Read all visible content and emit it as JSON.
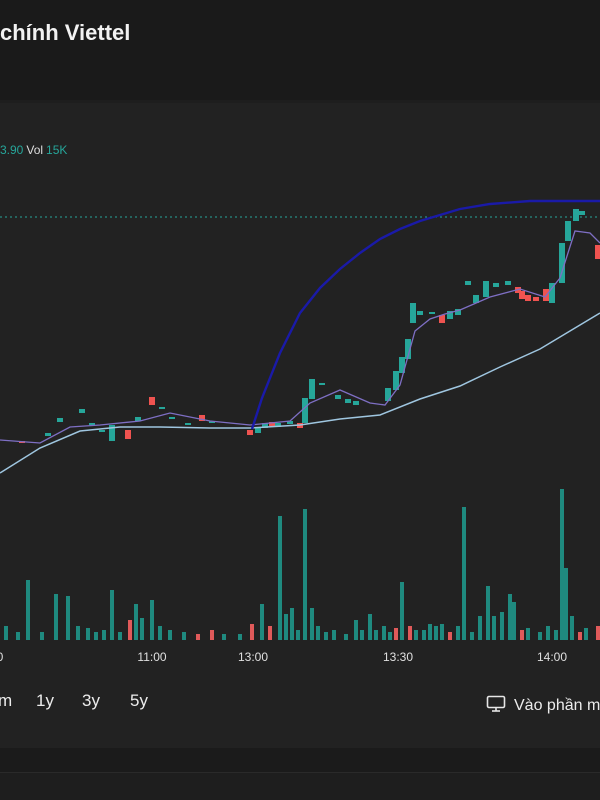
{
  "header": {
    "title": "chính Viettel"
  },
  "legend": {
    "price": "3.90",
    "vol_label": "Vol",
    "vol_value": "15K"
  },
  "ranges": [
    "m",
    "1y",
    "3y",
    "5y"
  ],
  "fullscreen": {
    "label": "Vào phần m"
  },
  "chart_data": {
    "type": "candlestick",
    "xlabels": [
      "0",
      "11:00",
      "13:00",
      "13:30",
      "14:00"
    ],
    "colors": {
      "up": "#26a69a",
      "down": "#ef5350",
      "ma_short": "#7e6fc4",
      "ma_long": "#9fc6e0",
      "overlay": "#1a1aa8",
      "ref_line": "#26a69a"
    }
  }
}
